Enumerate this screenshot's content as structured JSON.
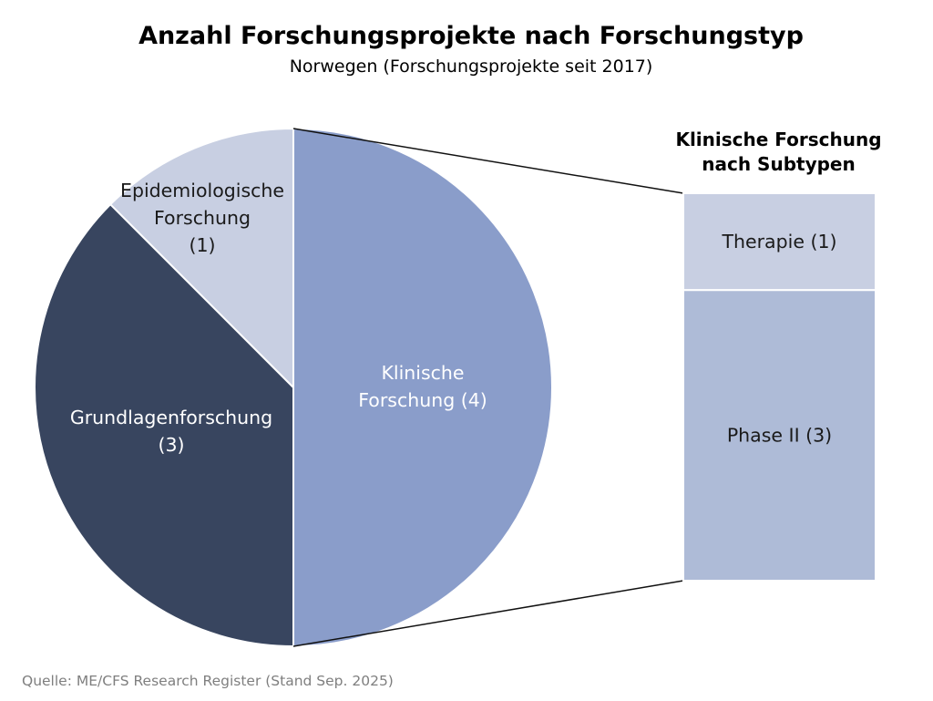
{
  "chart_data": {
    "type": "pie",
    "title": "Anzahl Forschungsprojekte nach Forschungstyp",
    "subtitle": "Norwegen (Forschungsprojekte seit 2017)",
    "source": "Quelle: ME/CFS Research Register (Stand Sep. 2025)",
    "slices": [
      {
        "label_lines": [
          "Klinische",
          "Forschung (4)"
        ],
        "value": 4,
        "color": "#8a9dca",
        "text_color": "#ffffff"
      },
      {
        "label_lines": [
          "Grundlagenforschung",
          "(3)"
        ],
        "value": 3,
        "color": "#38455f",
        "text_color": "#ffffff"
      },
      {
        "label_lines": [
          "Epidemiologische",
          "Forschung",
          "(1)"
        ],
        "value": 1,
        "color": "#c8cfe2",
        "text_color": "#1a1a1a"
      }
    ],
    "breakdown": {
      "title_lines": [
        "Klinische Forschung",
        "nach Subtypen"
      ],
      "parts": [
        {
          "label": "Therapie (1)",
          "value": 1,
          "color": "#c8cfe2"
        },
        {
          "label": "Phase II (3)",
          "value": 3,
          "color": "#aebbd7"
        }
      ]
    }
  }
}
